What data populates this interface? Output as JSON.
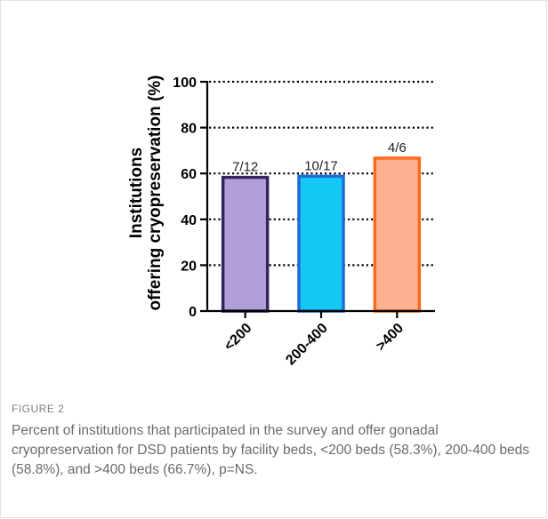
{
  "figure": {
    "label": "FIGURE 2",
    "caption": "Percent of institutions that participated in the survey and offer gonadal cryopreservation for DSD patients by facility beds, <200 beds (58.3%), 200-400 beds (58.8%), and >400 beds (66.7%), p=NS."
  },
  "chart_data": {
    "type": "bar",
    "title": "",
    "xlabel": "",
    "ylabel": [
      "Institutions",
      "offering cryopreservation (%)"
    ],
    "categories": [
      "<200",
      "200-400",
      ">400"
    ],
    "values": [
      58.3,
      58.8,
      66.7
    ],
    "data_labels": [
      "7/12",
      "10/17",
      "4/6"
    ],
    "ylim": [
      0,
      100
    ],
    "yticks": [
      "0",
      "20",
      "40",
      "60",
      "80",
      "100"
    ],
    "grid": "dotted horizontal at each y tick",
    "bar_fill_colors": [
      "#b19fd9",
      "#14c8f5",
      "#fbb090"
    ],
    "bar_edge_colors": [
      "#35255e",
      "#1e6cd6",
      "#fb6a20"
    ]
  }
}
